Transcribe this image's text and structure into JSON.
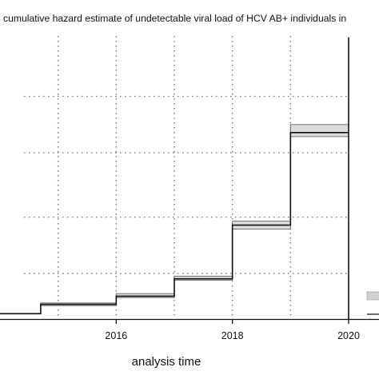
{
  "chart_data": {
    "type": "line",
    "title": "cumulative hazard estimate of undetectable viral load of HCV AB+ individuals in",
    "xlabel": "analysis time",
    "ylabel": "",
    "xlim": [
      2014.0,
      2020.2
    ],
    "ylim": [
      0,
      1.1
    ],
    "xticks": [
      2016,
      2018,
      2020
    ],
    "xtick_labels": [
      "2016",
      "2018",
      "2020"
    ],
    "grid": true,
    "legend_position": "right",
    "series": [
      {
        "role": "estimate",
        "step": [
          {
            "x": 2014.0,
            "y": 0.02
          },
          {
            "x": 2014.7,
            "y": 0.055
          },
          {
            "x": 2016.0,
            "y": 0.085
          },
          {
            "x": 2017.0,
            "y": 0.15
          },
          {
            "x": 2018.0,
            "y": 0.35
          },
          {
            "x": 2019.0,
            "y": 0.695
          },
          {
            "x": 2020.0,
            "y": 1.05
          }
        ]
      },
      {
        "role": "confidence_interval",
        "band": [
          {
            "x0": 2014.7,
            "x1": 2016.0,
            "lo": 0.05,
            "hi": 0.06
          },
          {
            "x0": 2016.0,
            "x1": 2017.0,
            "lo": 0.08,
            "hi": 0.095
          },
          {
            "x0": 2017.0,
            "x1": 2018.0,
            "lo": 0.145,
            "hi": 0.16
          },
          {
            "x0": 2018.0,
            "x1": 2019.0,
            "lo": 0.335,
            "hi": 0.365
          },
          {
            "x0": 2019.0,
            "x1": 2020.0,
            "lo": 0.68,
            "hi": 0.725
          }
        ]
      }
    ],
    "colors": {
      "line": "#111111",
      "band_fill": "#dcdcdc",
      "band_edge": "#555555",
      "grid": "#777777",
      "legend_band": "#d0d0d0"
    }
  }
}
